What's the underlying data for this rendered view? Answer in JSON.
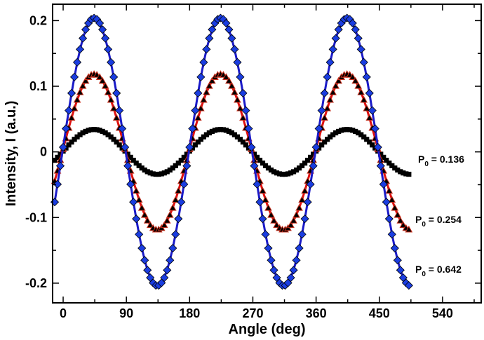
{
  "chart_data": {
    "type": "scatter",
    "title": "",
    "xlabel": "Angle (deg)",
    "ylabel": "Intensity, I (a.u.)",
    "xlim": [
      -15,
      595
    ],
    "ylim": [
      -0.23,
      0.225
    ],
    "xticks": [
      0,
      90,
      180,
      270,
      360,
      450,
      540
    ],
    "xtick_labels": [
      "0",
      "90",
      "180",
      "270",
      "360",
      "450",
      "540"
    ],
    "yticks": [
      -0.2,
      -0.1,
      0,
      0.1,
      0.2
    ],
    "ytick_labels": [
      "-0.2",
      "-0.1",
      "0",
      "0.1",
      "0.2"
    ],
    "grid": false,
    "legend": "none",
    "fit_period_deg": 180,
    "fit_peak_deg": 44,
    "sample_range_deg": [
      -12,
      492
    ],
    "sample_step_deg": 4,
    "series": [
      {
        "marker": "diamond",
        "color": "#1a3de0",
        "fit_color": "#1a1ac8",
        "amplitude": 0.203,
        "annotation_prefix": "P",
        "annotation_sub": "0",
        "annotation_value": " = 0.642"
      },
      {
        "marker": "triangle",
        "color": "#c8301e",
        "fit_color": "#e01010",
        "amplitude": 0.118,
        "annotation_prefix": "P",
        "annotation_sub": "0",
        "annotation_value": " = 0.254"
      },
      {
        "marker": "square",
        "color": "#000000",
        "fit_color": "#000000",
        "amplitude": 0.034,
        "annotation_prefix": "P",
        "annotation_sub": "0",
        "annotation_value": " = 0.136"
      }
    ]
  }
}
